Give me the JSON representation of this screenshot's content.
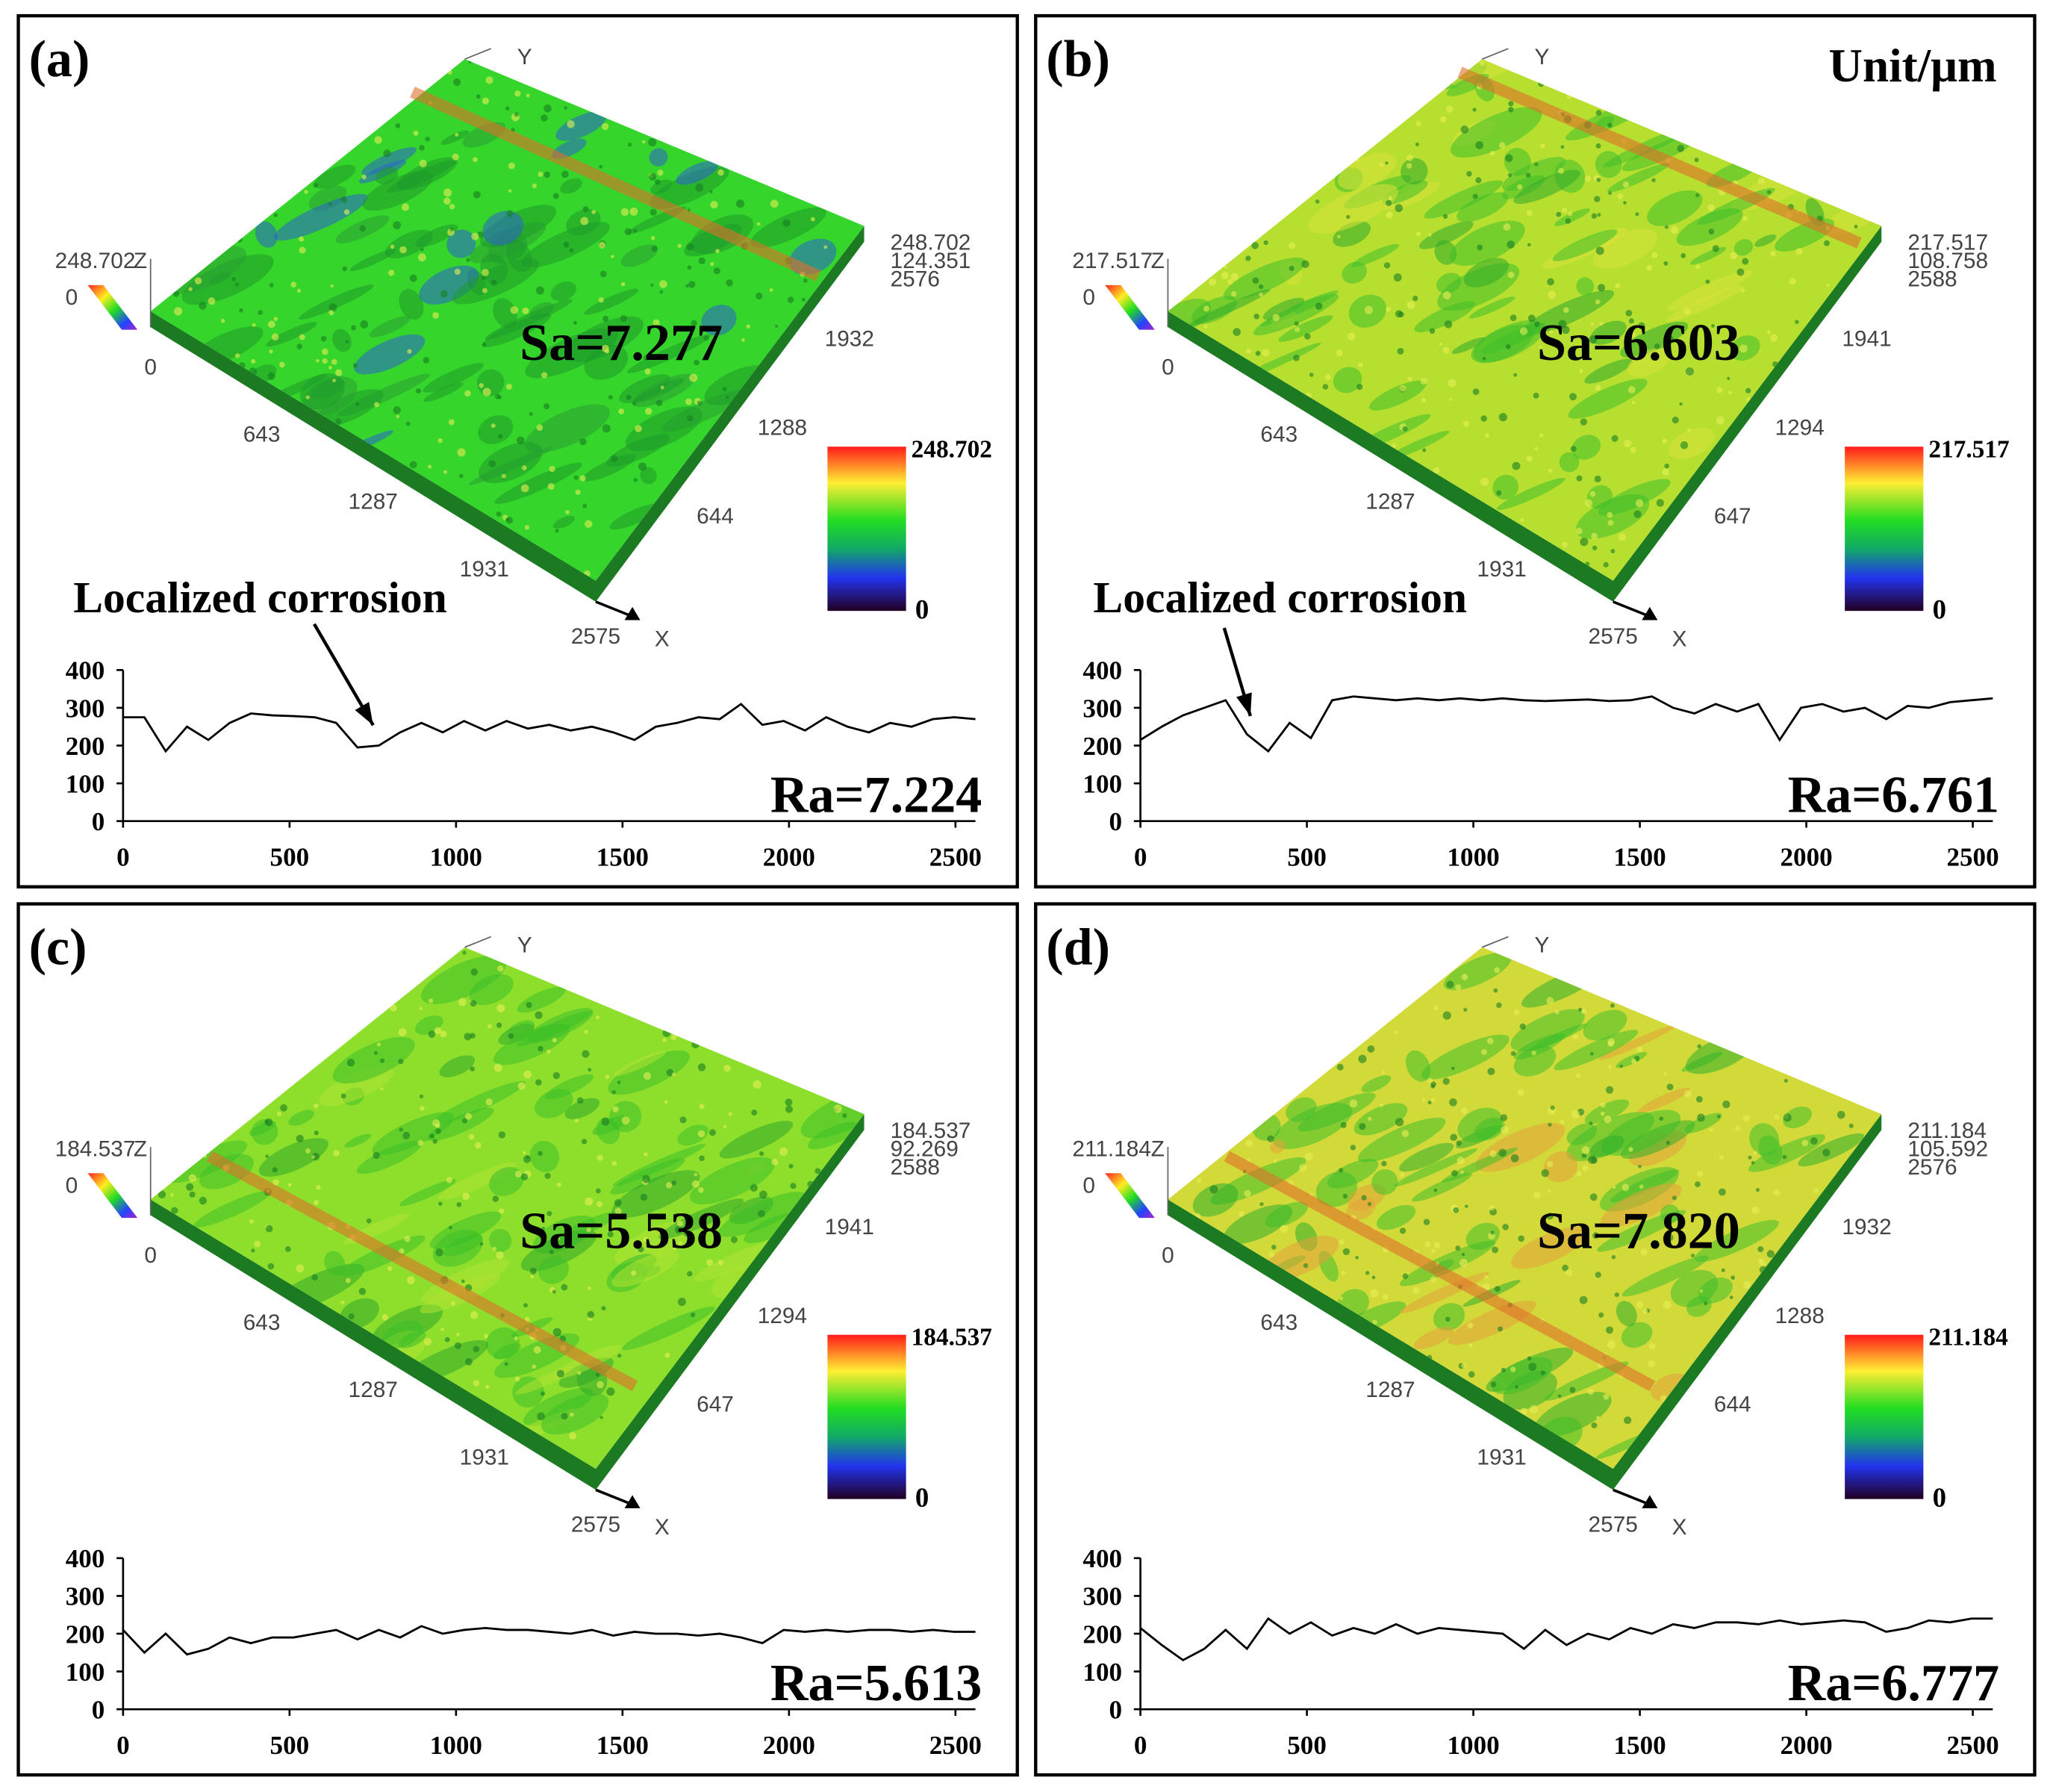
{
  "chart_data": [
    {
      "type": "line",
      "panel_label": "(a)",
      "sa_label": "Sa=7.277",
      "ra_label": "Ra=7.224",
      "annotation": "Localized corrosion",
      "axis_names": [
        "X",
        "Y",
        "Z"
      ],
      "xticks3d": [
        0,
        643,
        1287,
        1931,
        2575
      ],
      "yticks3d": [
        644,
        1288,
        1932,
        2576
      ],
      "zticks3d": [
        0,
        124.351,
        248.702
      ],
      "x": [
        0,
        64,
        128,
        192,
        256,
        320,
        384,
        448,
        512,
        576,
        640,
        704,
        768,
        832,
        896,
        960,
        1024,
        1088,
        1152,
        1216,
        1280,
        1344,
        1408,
        1472,
        1536,
        1600,
        1664,
        1728,
        1792,
        1856,
        1920,
        1984,
        2048,
        2112,
        2176,
        2240,
        2304,
        2368,
        2432,
        2496,
        2560
      ],
      "values": [
        275,
        275,
        185,
        250,
        215,
        260,
        285,
        280,
        278,
        275,
        260,
        195,
        200,
        235,
        260,
        235,
        265,
        240,
        265,
        245,
        255,
        240,
        250,
        235,
        215,
        250,
        260,
        275,
        270,
        310,
        255,
        265,
        240,
        275,
        250,
        235,
        260,
        250,
        270,
        275,
        270
      ],
      "color": "#000000",
      "xlim": [
        0,
        2560
      ],
      "ylim": [
        0,
        400
      ],
      "xticks": [
        0,
        500,
        1000,
        1500,
        2000,
        2500
      ],
      "yticks": [
        0,
        100,
        200,
        300,
        400
      ]
    },
    {
      "type": "line",
      "panel_label": "(b)",
      "unit_label": "Unit/μm",
      "sa_label": "Sa=6.603",
      "ra_label": "Ra=6.761",
      "annotation": "Localized corrosion",
      "axis_names": [
        "X",
        "Y",
        "Z"
      ],
      "xticks3d": [
        0,
        643,
        1287,
        1931,
        2575
      ],
      "yticks3d": [
        647,
        1294,
        1941,
        2588
      ],
      "zticks3d": [
        0,
        108.758,
        217.517
      ],
      "x": [
        0,
        64,
        128,
        192,
        256,
        320,
        384,
        448,
        512,
        576,
        640,
        704,
        768,
        832,
        896,
        960,
        1024,
        1088,
        1152,
        1216,
        1280,
        1344,
        1408,
        1472,
        1536,
        1600,
        1664,
        1728,
        1792,
        1856,
        1920,
        1984,
        2048,
        2112,
        2176,
        2240,
        2304,
        2368,
        2432,
        2496,
        2560
      ],
      "values": [
        215,
        250,
        280,
        300,
        320,
        230,
        185,
        260,
        220,
        320,
        330,
        325,
        320,
        325,
        320,
        325,
        320,
        325,
        320,
        318,
        320,
        322,
        318,
        320,
        330,
        300,
        285,
        310,
        290,
        310,
        215,
        300,
        310,
        290,
        300,
        270,
        305,
        300,
        315,
        320,
        325
      ],
      "color": "#000000",
      "xlim": [
        0,
        2560
      ],
      "ylim": [
        0,
        400
      ],
      "xticks": [
        0,
        500,
        1000,
        1500,
        2000,
        2500
      ],
      "yticks": [
        0,
        100,
        200,
        300,
        400
      ]
    },
    {
      "type": "line",
      "panel_label": "(c)",
      "sa_label": "Sa=5.538",
      "ra_label": "Ra=5.613",
      "axis_names": [
        "X",
        "Y",
        "Z"
      ],
      "xticks3d": [
        0,
        643,
        1287,
        1931,
        2575
      ],
      "yticks3d": [
        647,
        1294,
        1941,
        2588
      ],
      "zticks3d": [
        0,
        92.269,
        184.537
      ],
      "x": [
        0,
        64,
        128,
        192,
        256,
        320,
        384,
        448,
        512,
        576,
        640,
        704,
        768,
        832,
        896,
        960,
        1024,
        1088,
        1152,
        1216,
        1280,
        1344,
        1408,
        1472,
        1536,
        1600,
        1664,
        1728,
        1792,
        1856,
        1920,
        1984,
        2048,
        2112,
        2176,
        2240,
        2304,
        2368,
        2432,
        2496,
        2560
      ],
      "values": [
        210,
        150,
        200,
        145,
        160,
        190,
        175,
        190,
        190,
        200,
        210,
        185,
        210,
        190,
        220,
        200,
        210,
        215,
        210,
        210,
        205,
        200,
        210,
        195,
        205,
        200,
        200,
        195,
        200,
        190,
        175,
        210,
        205,
        210,
        205,
        210,
        210,
        205,
        210,
        205,
        205
      ],
      "color": "#000000",
      "xlim": [
        0,
        2560
      ],
      "ylim": [
        0,
        400
      ],
      "xticks": [
        0,
        500,
        1000,
        1500,
        2000,
        2500
      ],
      "yticks": [
        0,
        100,
        200,
        300,
        400
      ]
    },
    {
      "type": "line",
      "panel_label": "(d)",
      "sa_label": "Sa=7.820",
      "ra_label": "Ra=6.777",
      "axis_names": [
        "X",
        "Y",
        "Z"
      ],
      "xticks3d": [
        0,
        643,
        1287,
        1931,
        2575
      ],
      "yticks3d": [
        644,
        1288,
        1932,
        2576
      ],
      "zticks3d": [
        0,
        105.592,
        211.184
      ],
      "x": [
        0,
        64,
        128,
        192,
        256,
        320,
        384,
        448,
        512,
        576,
        640,
        704,
        768,
        832,
        896,
        960,
        1024,
        1088,
        1152,
        1216,
        1280,
        1344,
        1408,
        1472,
        1536,
        1600,
        1664,
        1728,
        1792,
        1856,
        1920,
        1984,
        2048,
        2112,
        2176,
        2240,
        2304,
        2368,
        2432,
        2496,
        2560
      ],
      "values": [
        215,
        170,
        130,
        160,
        210,
        160,
        240,
        200,
        230,
        195,
        215,
        200,
        225,
        200,
        215,
        210,
        205,
        200,
        160,
        210,
        170,
        200,
        185,
        215,
        200,
        225,
        215,
        230,
        230,
        225,
        235,
        225,
        230,
        235,
        230,
        205,
        215,
        235,
        230,
        240,
        240
      ],
      "color": "#000000",
      "xlim": [
        0,
        2560
      ],
      "ylim": [
        0,
        400
      ],
      "xticks": [
        0,
        500,
        1000,
        1500,
        2000,
        2500
      ],
      "yticks": [
        0,
        100,
        200,
        300,
        400
      ]
    }
  ]
}
